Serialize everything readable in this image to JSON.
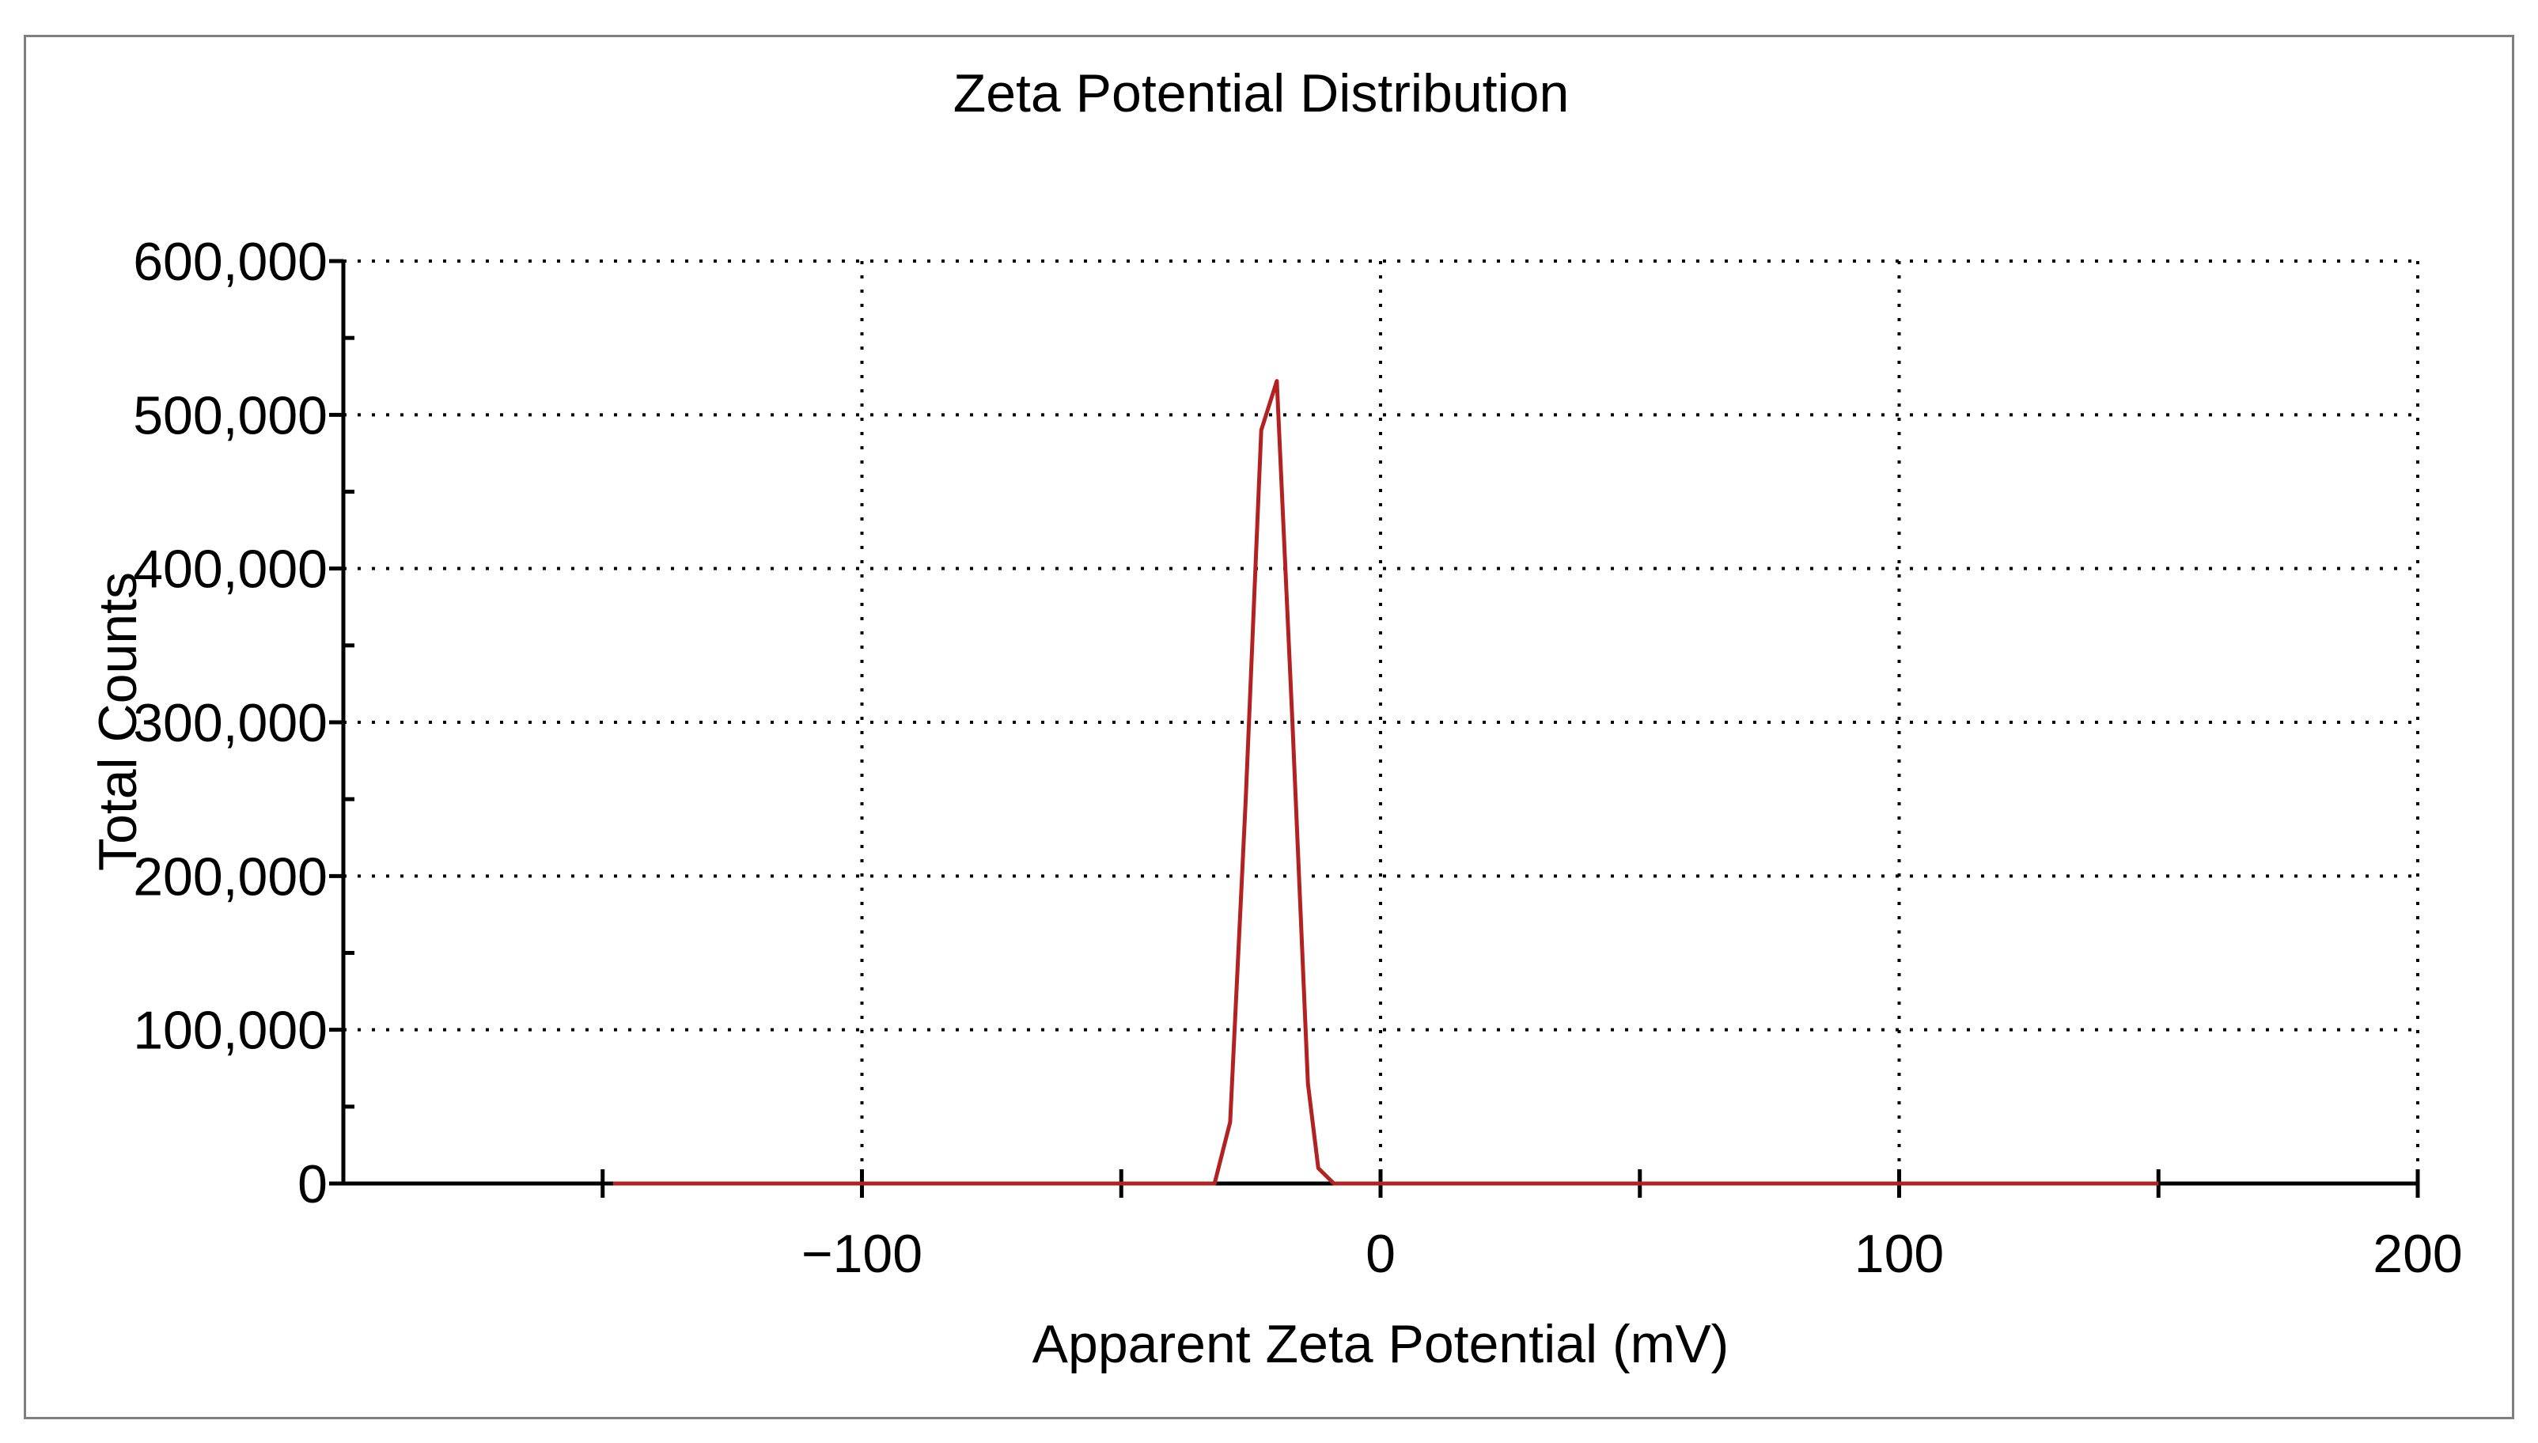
{
  "chart_data": {
    "type": "line",
    "title": "Zeta Potential Distribution",
    "xlabel": "Apparent Zeta Potential (mV)",
    "ylabel": "Total Counts",
    "xlim": [
      -200,
      200
    ],
    "ylim": [
      0,
      600000
    ],
    "x_ticks": [
      -100,
      0,
      100,
      200
    ],
    "x_tick_labels": [
      "−100",
      "0",
      "100",
      "200"
    ],
    "x_minor_ticks": [
      -150,
      -50,
      50,
      150
    ],
    "y_ticks": [
      0,
      100000,
      200000,
      300000,
      400000,
      500000,
      600000
    ],
    "y_tick_labels": [
      "0",
      "100,000",
      "200,000",
      "300,000",
      "400,000",
      "500,000",
      "600,000"
    ],
    "y_minor_ticks": [
      50000,
      150000,
      250000,
      350000,
      450000,
      550000
    ],
    "grid": true,
    "series": [
      {
        "name": "Total Counts",
        "color": "#b22222",
        "x": [
          -148,
          -32,
          -29,
          -26,
          -23,
          -20,
          -17,
          -14,
          -12,
          -9,
          150
        ],
        "y": [
          0,
          0,
          40000,
          250000,
          490000,
          522000,
          300000,
          65000,
          10000,
          0,
          0
        ]
      }
    ]
  },
  "colors": {
    "grid": "#000000",
    "axis": "#000000",
    "frame": "#7f7f7f",
    "line": "#b22222"
  }
}
